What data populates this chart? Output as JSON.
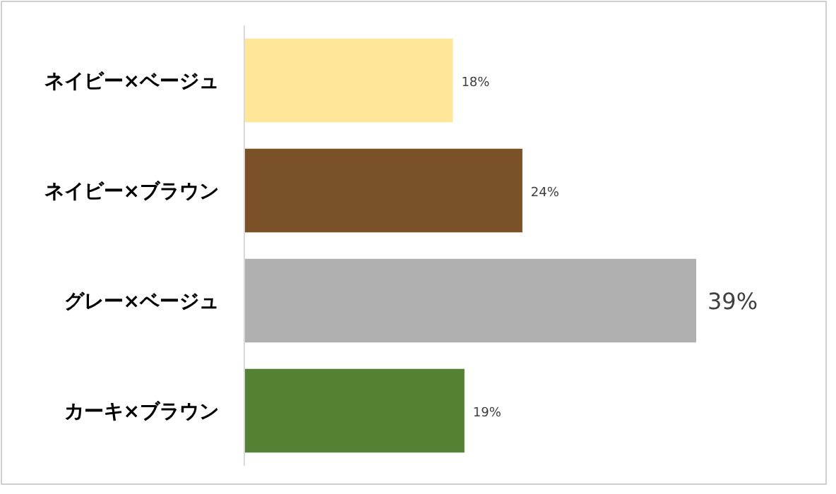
{
  "chart_data": {
    "type": "bar",
    "orientation": "horizontal",
    "categories": [
      "ネイビー×ベージュ",
      "ネイビー×ブラウン",
      "グレー×ベージュ",
      "カーキ×ブラウン"
    ],
    "values": [
      18,
      24,
      39,
      19
    ],
    "colors": [
      "#ffe699",
      "#7b5127",
      "#b0b0b0",
      "#548235"
    ],
    "value_labels": [
      "18%",
      "24%",
      "39%",
      "19%"
    ]
  }
}
